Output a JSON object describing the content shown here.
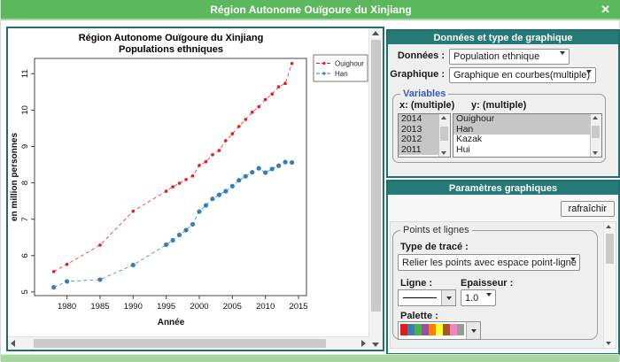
{
  "window": {
    "title": "Région Autonome Ouïgoure du Xinjiang",
    "close_glyph": "✕"
  },
  "chart_data": {
    "type": "line",
    "title": "Région Autonome Ouïgoure du Xinjiang",
    "subtitle": "Populations ethniques",
    "xlabel": "Année",
    "ylabel": "en million personnes",
    "x": [
      1978,
      1980,
      1985,
      1990,
      1995,
      1996,
      1997,
      1998,
      1999,
      2000,
      2001,
      2002,
      2003,
      2004,
      2005,
      2006,
      2007,
      2008,
      2009,
      2010,
      2011,
      2012,
      2013,
      2014
    ],
    "series": [
      {
        "name": "Ouighour",
        "color": "#e41a1c",
        "values": [
          5.56,
          5.76,
          6.29,
          7.22,
          7.77,
          7.89,
          7.99,
          8.09,
          8.19,
          8.48,
          8.58,
          8.77,
          8.89,
          9.16,
          9.35,
          9.55,
          9.74,
          9.94,
          10.09,
          10.29,
          10.44,
          10.64,
          10.73,
          11.28
        ]
      },
      {
        "name": "Han",
        "color": "#377eb8",
        "values": [
          5.13,
          5.29,
          5.34,
          5.74,
          6.3,
          6.42,
          6.57,
          6.7,
          6.86,
          7.21,
          7.38,
          7.56,
          7.67,
          7.77,
          7.91,
          8.07,
          8.18,
          8.29,
          8.4,
          8.28,
          8.38,
          8.47,
          8.57,
          8.56
        ]
      }
    ],
    "xticks": [
      1980,
      1985,
      1990,
      1995,
      2000,
      2005,
      2010,
      2015
    ],
    "yticks": [
      5,
      6,
      7,
      8,
      9,
      10,
      11
    ],
    "xlim": [
      1975.1,
      2016.2
    ],
    "ylim": [
      4.9,
      11.42
    ],
    "grid": false,
    "legend_position": "top-right",
    "line_style": "dashed-with-points"
  },
  "data_panel": {
    "header": "Données et type de graphique",
    "donnees_label": "Données :",
    "donnees_value": "Population ethnique",
    "graphique_label": "Graphique :",
    "graphique_value": "Graphique en courbes(multiple)",
    "variables": {
      "legend": "Variables",
      "x_label": "x: (multiple)",
      "y_label": "y: (multiple)",
      "x_options": [
        {
          "label": "2014",
          "selected": true
        },
        {
          "label": "2013",
          "selected": true
        },
        {
          "label": "2012",
          "selected": true
        },
        {
          "label": "2011",
          "selected": true
        }
      ],
      "y_options": [
        {
          "label": "Ouighour",
          "selected": true
        },
        {
          "label": "Han",
          "selected": true
        },
        {
          "label": "Kazak",
          "selected": false
        },
        {
          "label": "Hui",
          "selected": false
        }
      ]
    }
  },
  "params_panel": {
    "header": "Paramètres graphiques",
    "refresh_label": "rafraîchir",
    "points_lines": {
      "legend": "Points et lignes",
      "trace_label": "Type de tracé :",
      "trace_value": "Relier les points avec espace point-ligne",
      "ligne_label": "Ligne :",
      "epaisseur_label": "Epaisseur :",
      "epaisseur_value": "1.0",
      "palette_label": "Palette :",
      "palette_colors": [
        "#e41a1c",
        "#377eb8",
        "#4daf4a",
        "#984ea3",
        "#ff7f00",
        "#ffff33",
        "#a65628",
        "#f781bf",
        "#999999"
      ]
    }
  },
  "colors": {
    "titlebar_green": "#5cb85c",
    "header_teal": "#257a77",
    "panel_border_teal": "#1e6f6d",
    "series_red": "#e41a1c",
    "series_blue": "#377eb8"
  }
}
